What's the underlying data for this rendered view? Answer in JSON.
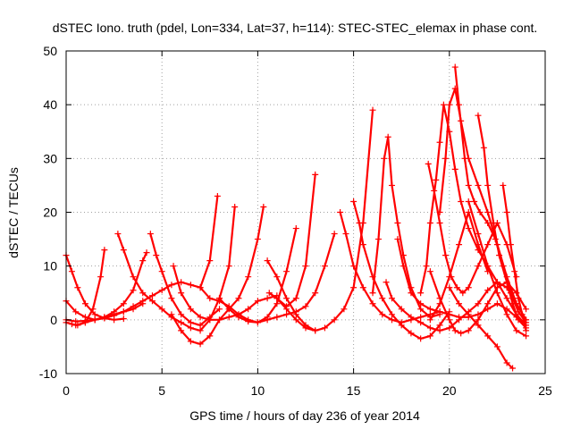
{
  "chart_data": {
    "type": "scatter",
    "title": "dSTEC Iono. truth (pdel, Lon=334, Lat=37, h=114): STEC-STEC_elemax in phase cont.",
    "xlabel": "GPS time / hours of day 236 of year 2014",
    "ylabel": "dSTEC  / TECUs",
    "xlim": [
      0,
      25
    ],
    "ylim": [
      -10,
      50
    ],
    "xticks": [
      0,
      5,
      10,
      15,
      20,
      25
    ],
    "yticks": [
      -10,
      0,
      10,
      20,
      30,
      40,
      50
    ],
    "xtick_labels": [
      "0",
      "5",
      "10",
      "15",
      "20",
      "25"
    ],
    "ytick_labels": [
      "-10",
      "0",
      "10",
      "20",
      "30",
      "40",
      "50"
    ],
    "grid": true,
    "marker": "+",
    "color": "#ff0000",
    "series": [
      {
        "x": [
          0.0,
          0.3,
          0.6,
          1.0,
          1.4,
          1.8,
          2.0
        ],
        "y": [
          -0.5,
          -0.8,
          -1.0,
          -0.5,
          2.0,
          8.0,
          13.0
        ]
      },
      {
        "x": [
          0.0,
          0.3,
          0.6,
          1.0,
          1.5,
          2.0,
          2.5,
          3.0
        ],
        "y": [
          12.0,
          9.0,
          6.0,
          3.0,
          1.0,
          0.3,
          0.0,
          0.2
        ]
      },
      {
        "x": [
          0.0,
          0.5,
          1.0,
          1.5,
          2.0,
          2.5,
          3.0,
          3.5,
          4.0,
          4.2
        ],
        "y": [
          3.5,
          1.5,
          0.5,
          0.0,
          0.5,
          1.5,
          3.0,
          5.5,
          11.0,
          12.5
        ]
      },
      {
        "x": [
          0.0,
          0.5,
          1.0,
          1.5,
          2.0,
          2.5,
          3.0,
          3.5,
          4.0,
          4.5,
          5.0,
          5.5,
          6.0,
          6.5,
          7.0,
          7.5,
          7.9
        ],
        "y": [
          0.0,
          -0.3,
          -0.2,
          0.0,
          0.3,
          0.8,
          1.5,
          2.5,
          3.5,
          4.5,
          5.5,
          6.5,
          7.0,
          6.5,
          6.0,
          11.0,
          23.0
        ]
      },
      {
        "x": [
          0.5,
          1.0,
          1.5,
          2.0,
          2.5,
          3.0,
          3.5,
          4.0
        ],
        "y": [
          -1.0,
          -0.5,
          0.0,
          0.5,
          1.0,
          1.5,
          2.0,
          3.0
        ]
      },
      {
        "x": [
          2.7,
          3.0,
          3.5,
          4.0,
          4.5,
          5.0,
          5.5,
          6.0,
          6.5,
          7.0,
          7.5,
          8.0,
          8.5,
          8.8
        ],
        "y": [
          16.0,
          13.0,
          8.0,
          5.0,
          3.5,
          2.0,
          0.5,
          -0.5,
          -1.5,
          -2.0,
          0.0,
          4.0,
          10.0,
          21.0
        ]
      },
      {
        "x": [
          4.4,
          4.7,
          5.0,
          5.5,
          6.0,
          6.5,
          7.0,
          7.5,
          8.0
        ],
        "y": [
          16.0,
          12.0,
          9.0,
          4.0,
          1.0,
          -0.5,
          -1.0,
          0.5,
          2.0
        ]
      },
      {
        "x": [
          5.5,
          6.0,
          6.5,
          7.0,
          7.5,
          8.0,
          8.5,
          9.0,
          9.5,
          10.0,
          10.3
        ],
        "y": [
          1.0,
          -2.0,
          -4.0,
          -4.5,
          -3.0,
          0.0,
          2.0,
          4.0,
          8.0,
          15.0,
          21.0
        ]
      },
      {
        "x": [
          5.6,
          6.0,
          6.5,
          7.0,
          7.5,
          8.0,
          8.5,
          9.0,
          9.5,
          10.0,
          10.5,
          11.0
        ],
        "y": [
          10.0,
          5.0,
          2.0,
          0.5,
          0.0,
          0.0,
          0.5,
          1.0,
          2.0,
          3.5,
          4.0,
          4.5
        ]
      },
      {
        "x": [
          7.0,
          7.5,
          8.0,
          8.5,
          9.0,
          9.5,
          10.0,
          10.5,
          11.0,
          11.5,
          12.0
        ],
        "y": [
          6.0,
          4.0,
          3.5,
          2.5,
          1.0,
          0.0,
          -0.5,
          0.5,
          3.0,
          9.0,
          17.0
        ]
      },
      {
        "x": [
          8.0,
          8.5,
          9.0,
          9.5,
          10.0,
          10.5,
          11.0,
          11.5,
          12.0,
          12.5,
          13.0,
          13.5,
          14.0
        ],
        "y": [
          4.0,
          2.0,
          0.5,
          -0.3,
          -0.5,
          0.0,
          0.5,
          1.0,
          1.5,
          2.5,
          5.0,
          10.0,
          16.0
        ]
      },
      {
        "x": [
          10.5,
          11.0,
          11.5,
          12.0,
          12.5,
          13.0,
          13.5,
          14.0,
          14.5,
          15.0,
          15.5,
          16.0
        ],
        "y": [
          11.0,
          8.0,
          4.0,
          1.0,
          -1.0,
          -2.0,
          -1.5,
          0.0,
          2.0,
          6.0,
          18.0,
          39.0
        ]
      },
      {
        "x": [
          10.6,
          11.0,
          11.5,
          12.0,
          12.5,
          13.0
        ],
        "y": [
          5.0,
          4.0,
          2.0,
          0.0,
          -1.5,
          -2.0
        ]
      },
      {
        "x": [
          11.0,
          11.5,
          12.0,
          12.5,
          13.0
        ],
        "y": [
          4.0,
          2.5,
          4.0,
          10.0,
          27.0
        ]
      },
      {
        "x": [
          14.3,
          14.6,
          15.0,
          15.5,
          16.0,
          16.5,
          17.0,
          17.5,
          18.0,
          18.5,
          19.0,
          19.5
        ],
        "y": [
          20.0,
          16.0,
          10.0,
          6.0,
          3.0,
          1.0,
          0.0,
          -0.5,
          0.0,
          0.5,
          1.0,
          1.5
        ]
      },
      {
        "x": [
          15.0,
          15.3,
          15.5,
          16.0,
          16.5,
          17.0,
          17.5,
          18.0,
          18.5,
          19.0,
          19.5,
          20.0
        ],
        "y": [
          22.0,
          18.0,
          14.0,
          8.0,
          4.0,
          1.0,
          -1.0,
          -2.5,
          -3.5,
          -3.0,
          -1.0,
          1.5
        ]
      },
      {
        "x": [
          16.0,
          16.3,
          16.6,
          16.8,
          17.0,
          17.3,
          17.6,
          18.0,
          18.5,
          19.0,
          19.5
        ],
        "y": [
          5.0,
          15.0,
          30.0,
          34.0,
          25.0,
          18.0,
          12.0,
          6.0,
          2.0,
          0.5,
          1.0
        ]
      },
      {
        "x": [
          16.7,
          17.0,
          17.5,
          18.0,
          18.5,
          19.0,
          19.5,
          20.0,
          20.5,
          21.0,
          21.5,
          22.0,
          22.5,
          23.0,
          23.5,
          24.0
        ],
        "y": [
          7.0,
          4.0,
          2.0,
          0.5,
          -0.5,
          -1.5,
          -2.0,
          -1.5,
          0.0,
          1.5,
          3.0,
          5.5,
          7.0,
          6.0,
          3.0,
          0.0
        ]
      },
      {
        "x": [
          17.3,
          17.6,
          18.0,
          18.5,
          19.0,
          19.5,
          20.0,
          20.5,
          21.0,
          21.5,
          22.0,
          22.5,
          23.0,
          23.5,
          23.9
        ],
        "y": [
          15.0,
          10.0,
          5.0,
          3.0,
          2.0,
          1.5,
          1.0,
          0.5,
          0.5,
          1.0,
          2.0,
          3.0,
          2.0,
          0.5,
          -0.5
        ]
      },
      {
        "x": [
          18.5,
          18.8,
          19.0,
          19.3,
          19.5,
          19.7,
          20.0,
          20.3,
          20.6,
          21.0,
          21.5,
          22.0,
          22.5,
          23.0,
          23.5,
          24.0
        ],
        "y": [
          5.0,
          10.0,
          18.0,
          26.0,
          33.0,
          40.0,
          35.0,
          28.0,
          22.0,
          17.0,
          13.0,
          10.0,
          7.0,
          4.0,
          1.0,
          -1.0
        ]
      },
      {
        "x": [
          18.9,
          19.2,
          19.5,
          19.8,
          20.1,
          20.4,
          20.7,
          21.0,
          21.5,
          22.0,
          22.5,
          23.0,
          23.5
        ],
        "y": [
          29.0,
          24.0,
          18.0,
          12.0,
          8.0,
          6.0,
          5.0,
          6.0,
          10.0,
          14.0,
          18.0,
          14.0,
          8.0
        ]
      },
      {
        "x": [
          19.0,
          19.5,
          20.0,
          20.3,
          20.6,
          21.0,
          21.5,
          22.0,
          22.5,
          23.0,
          23.5,
          24.0
        ],
        "y": [
          9.0,
          4.0,
          0.0,
          -2.0,
          -2.5,
          -2.0,
          0.0,
          3.0,
          6.0,
          7.0,
          5.0,
          2.0
        ]
      },
      {
        "x": [
          19.5,
          19.8,
          20.0,
          20.3,
          20.6,
          21.0,
          21.5,
          22.0,
          22.5,
          23.0,
          23.5,
          24.0
        ],
        "y": [
          20.0,
          30.0,
          40.0,
          43.0,
          37.0,
          30.0,
          25.0,
          20.0,
          14.0,
          8.0,
          3.0,
          0.0
        ]
      },
      {
        "x": [
          20.3,
          20.5,
          20.8,
          21.0,
          21.3,
          21.6,
          22.0,
          22.4,
          22.8,
          23.2,
          23.6,
          24.0
        ],
        "y": [
          47.0,
          40.0,
          30.0,
          25.0,
          22.0,
          20.0,
          18.0,
          15.0,
          10.0,
          5.0,
          1.5,
          -0.5
        ]
      },
      {
        "x": [
          20.0,
          20.5,
          21.0,
          21.5,
          22.0,
          22.5,
          23.0,
          23.3
        ],
        "y": [
          6.0,
          3.0,
          1.0,
          -1.0,
          -3.0,
          -5.0,
          -8.0,
          -9.0
        ]
      },
      {
        "x": [
          21.5,
          21.8,
          22.0,
          22.3,
          22.6,
          23.0,
          23.3,
          23.6,
          24.0
        ],
        "y": [
          38.0,
          32.0,
          25.0,
          18.0,
          12.0,
          7.0,
          3.0,
          0.0,
          -1.5
        ]
      },
      {
        "x": [
          22.8,
          23.0,
          23.2,
          23.4,
          23.6,
          23.8,
          24.0
        ],
        "y": [
          25.0,
          20.0,
          14.0,
          9.0,
          4.0,
          1.0,
          -2.0
        ]
      },
      {
        "x": [
          21.0,
          21.5,
          22.0,
          22.5,
          23.0,
          23.5,
          24.0
        ],
        "y": [
          22.0,
          16.0,
          10.0,
          5.0,
          1.0,
          -2.0,
          -3.0
        ]
      },
      {
        "x": [
          19.0,
          19.5,
          20.0,
          20.5,
          21.0,
          21.5,
          22.0
        ],
        "y": [
          0.0,
          3.0,
          8.0,
          14.0,
          20.0,
          14.0,
          9.0
        ]
      }
    ]
  }
}
